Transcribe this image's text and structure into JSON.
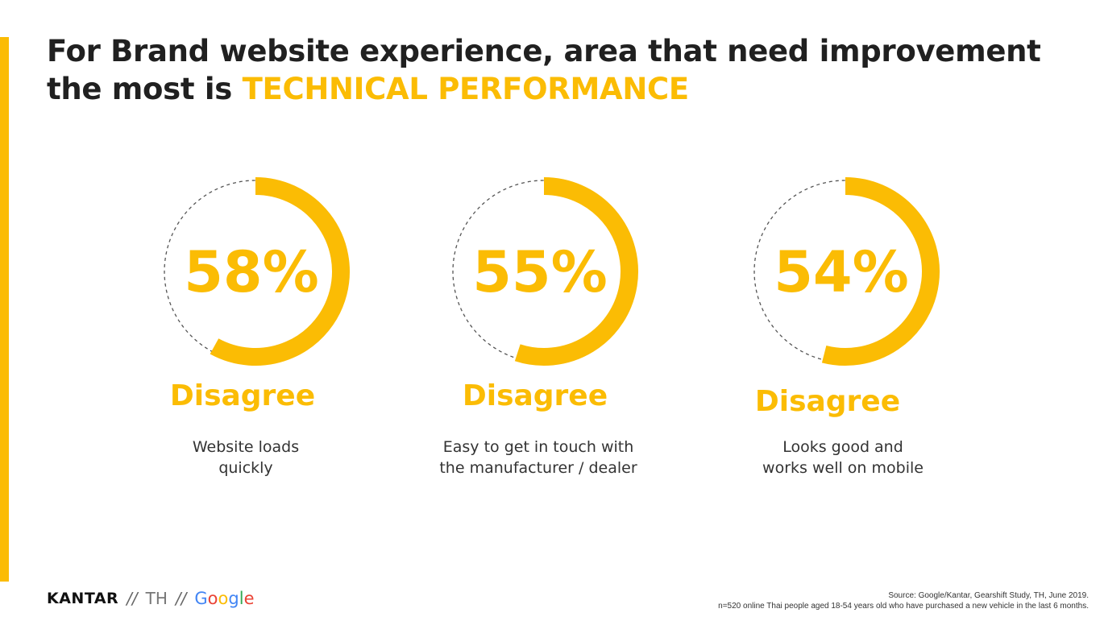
{
  "title": {
    "prefix": "For Brand website experience, area that need improvement the most is",
    "highlight": "TECHNICAL PERFORMANCE"
  },
  "colors": {
    "accent": "#FBBC04",
    "dashed_ring": "#555555"
  },
  "chart_data": {
    "type": "donut",
    "items": [
      {
        "value": 58,
        "value_label": "58%",
        "label": "Disagree",
        "description_lines": [
          "Website loads",
          "quickly"
        ]
      },
      {
        "value": 55,
        "value_label": "55%",
        "label": "Disagree",
        "description_lines": [
          "Easy to get in touch with",
          "the manufacturer / dealer"
        ]
      },
      {
        "value": 54,
        "value_label": "54%",
        "label": "Disagree",
        "description_lines": [
          "Looks good and",
          "works well on mobile"
        ]
      }
    ]
  },
  "footer": {
    "kantar": "KANTAR",
    "separator": "//",
    "country": "TH",
    "google_letters": [
      "G",
      "o",
      "o",
      "g",
      "l",
      "e"
    ],
    "source_line1": "Source: Google/Kantar, Gearshift Study, TH, June 2019.",
    "source_line2": "n=520 online Thai people aged 18-54 years old who have purchased a new vehicle in the last 6 months."
  }
}
